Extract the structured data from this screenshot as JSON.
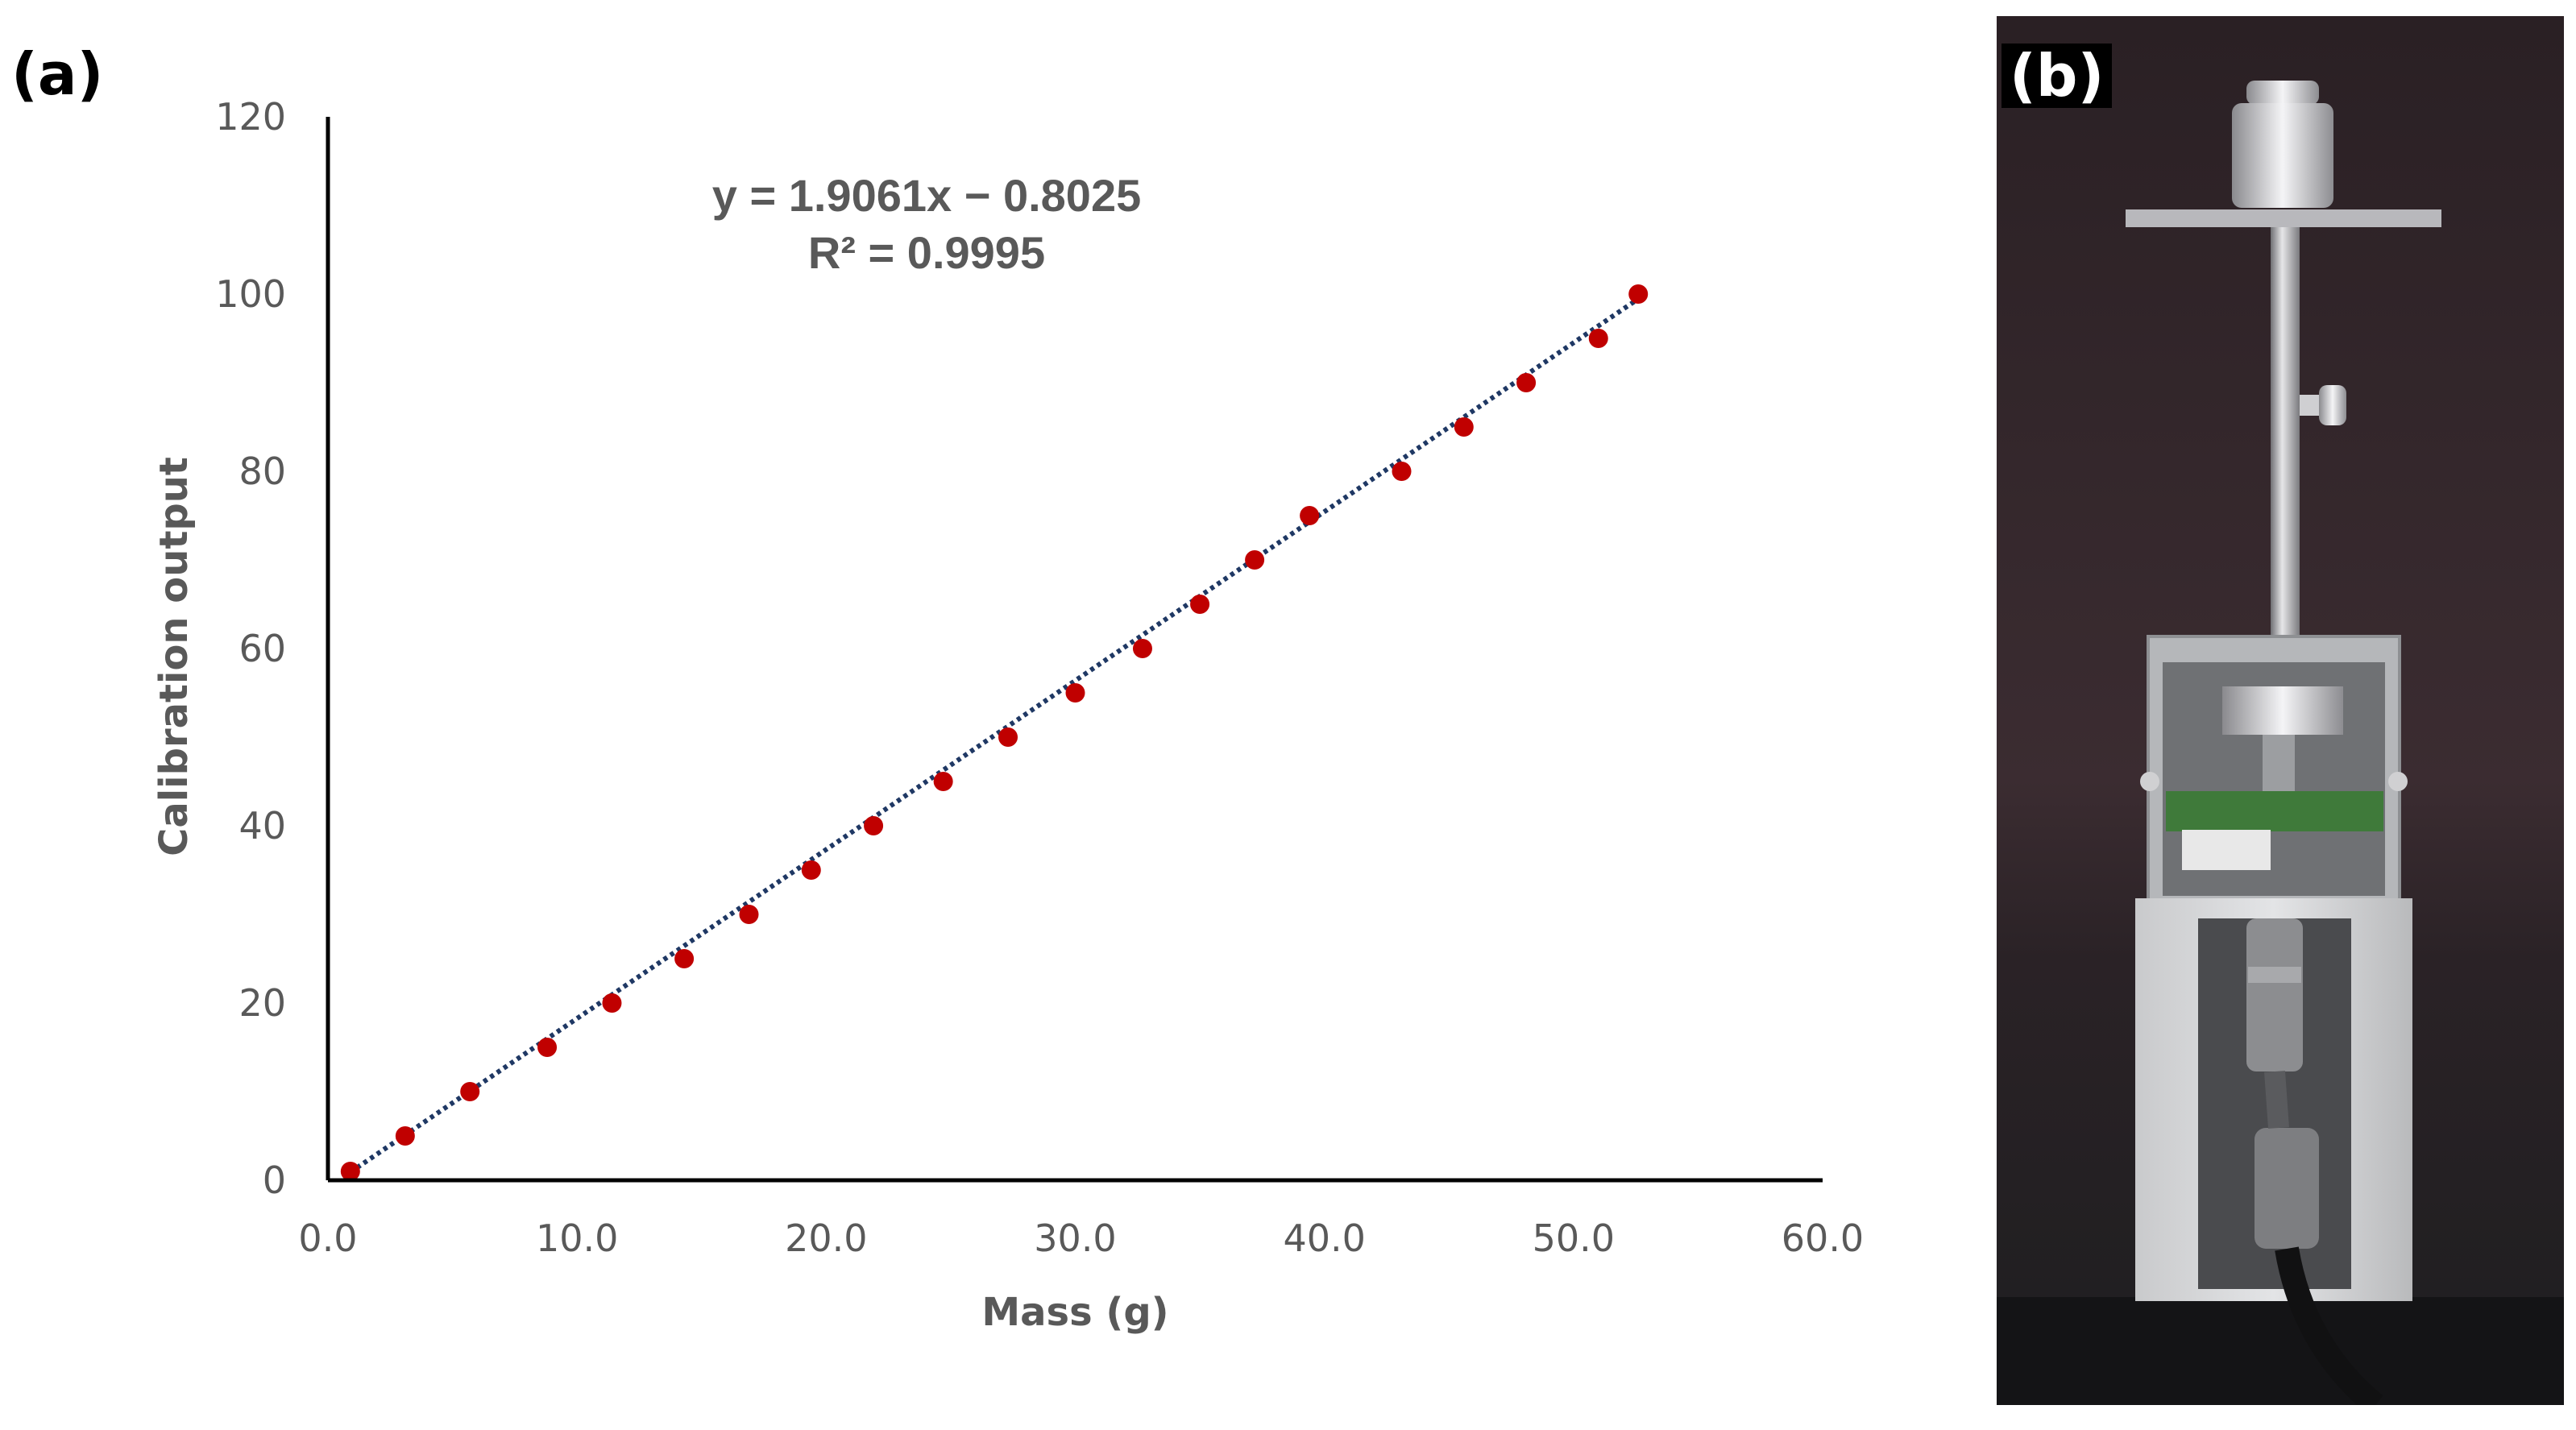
{
  "panel_a_label": "(a)",
  "panel_b_label": "(b)",
  "chart_data": {
    "type": "scatter",
    "title": "",
    "xlabel": "Mass (g)",
    "ylabel": "Calibration output",
    "xlim": [
      0,
      60
    ],
    "ylim": [
      0,
      120
    ],
    "x_ticks": [
      "0.0",
      "10.0",
      "20.0",
      "30.0",
      "40.0",
      "50.0",
      "60.0"
    ],
    "y_ticks": [
      "0",
      "20",
      "40",
      "60",
      "80",
      "100",
      "120"
    ],
    "x_tick_values": [
      0,
      10,
      20,
      30,
      40,
      50,
      60
    ],
    "y_tick_values": [
      0,
      20,
      40,
      60,
      80,
      100,
      120
    ],
    "grid": false,
    "points": [
      [
        0.9,
        1
      ],
      [
        3.1,
        5
      ],
      [
        5.7,
        10
      ],
      [
        8.8,
        15
      ],
      [
        11.4,
        20
      ],
      [
        14.3,
        25
      ],
      [
        16.9,
        30
      ],
      [
        19.4,
        35
      ],
      [
        21.9,
        40
      ],
      [
        24.7,
        45
      ],
      [
        27.3,
        50
      ],
      [
        30.0,
        55
      ],
      [
        32.7,
        60
      ],
      [
        35.0,
        65
      ],
      [
        37.2,
        70
      ],
      [
        39.4,
        75
      ],
      [
        43.1,
        80
      ],
      [
        45.6,
        85
      ],
      [
        48.1,
        90
      ],
      [
        51.0,
        95
      ],
      [
        52.6,
        100
      ]
    ],
    "point_color": "#c00000",
    "trendline": {
      "slope": 1.9061,
      "intercept": -0.8025,
      "x_range": [
        0.9,
        52.6
      ],
      "color": "#1f3864",
      "style": "dotted"
    },
    "equation_text": "y = 1.9061x − 0.8025",
    "r2_text": "R² = 0.9995"
  }
}
